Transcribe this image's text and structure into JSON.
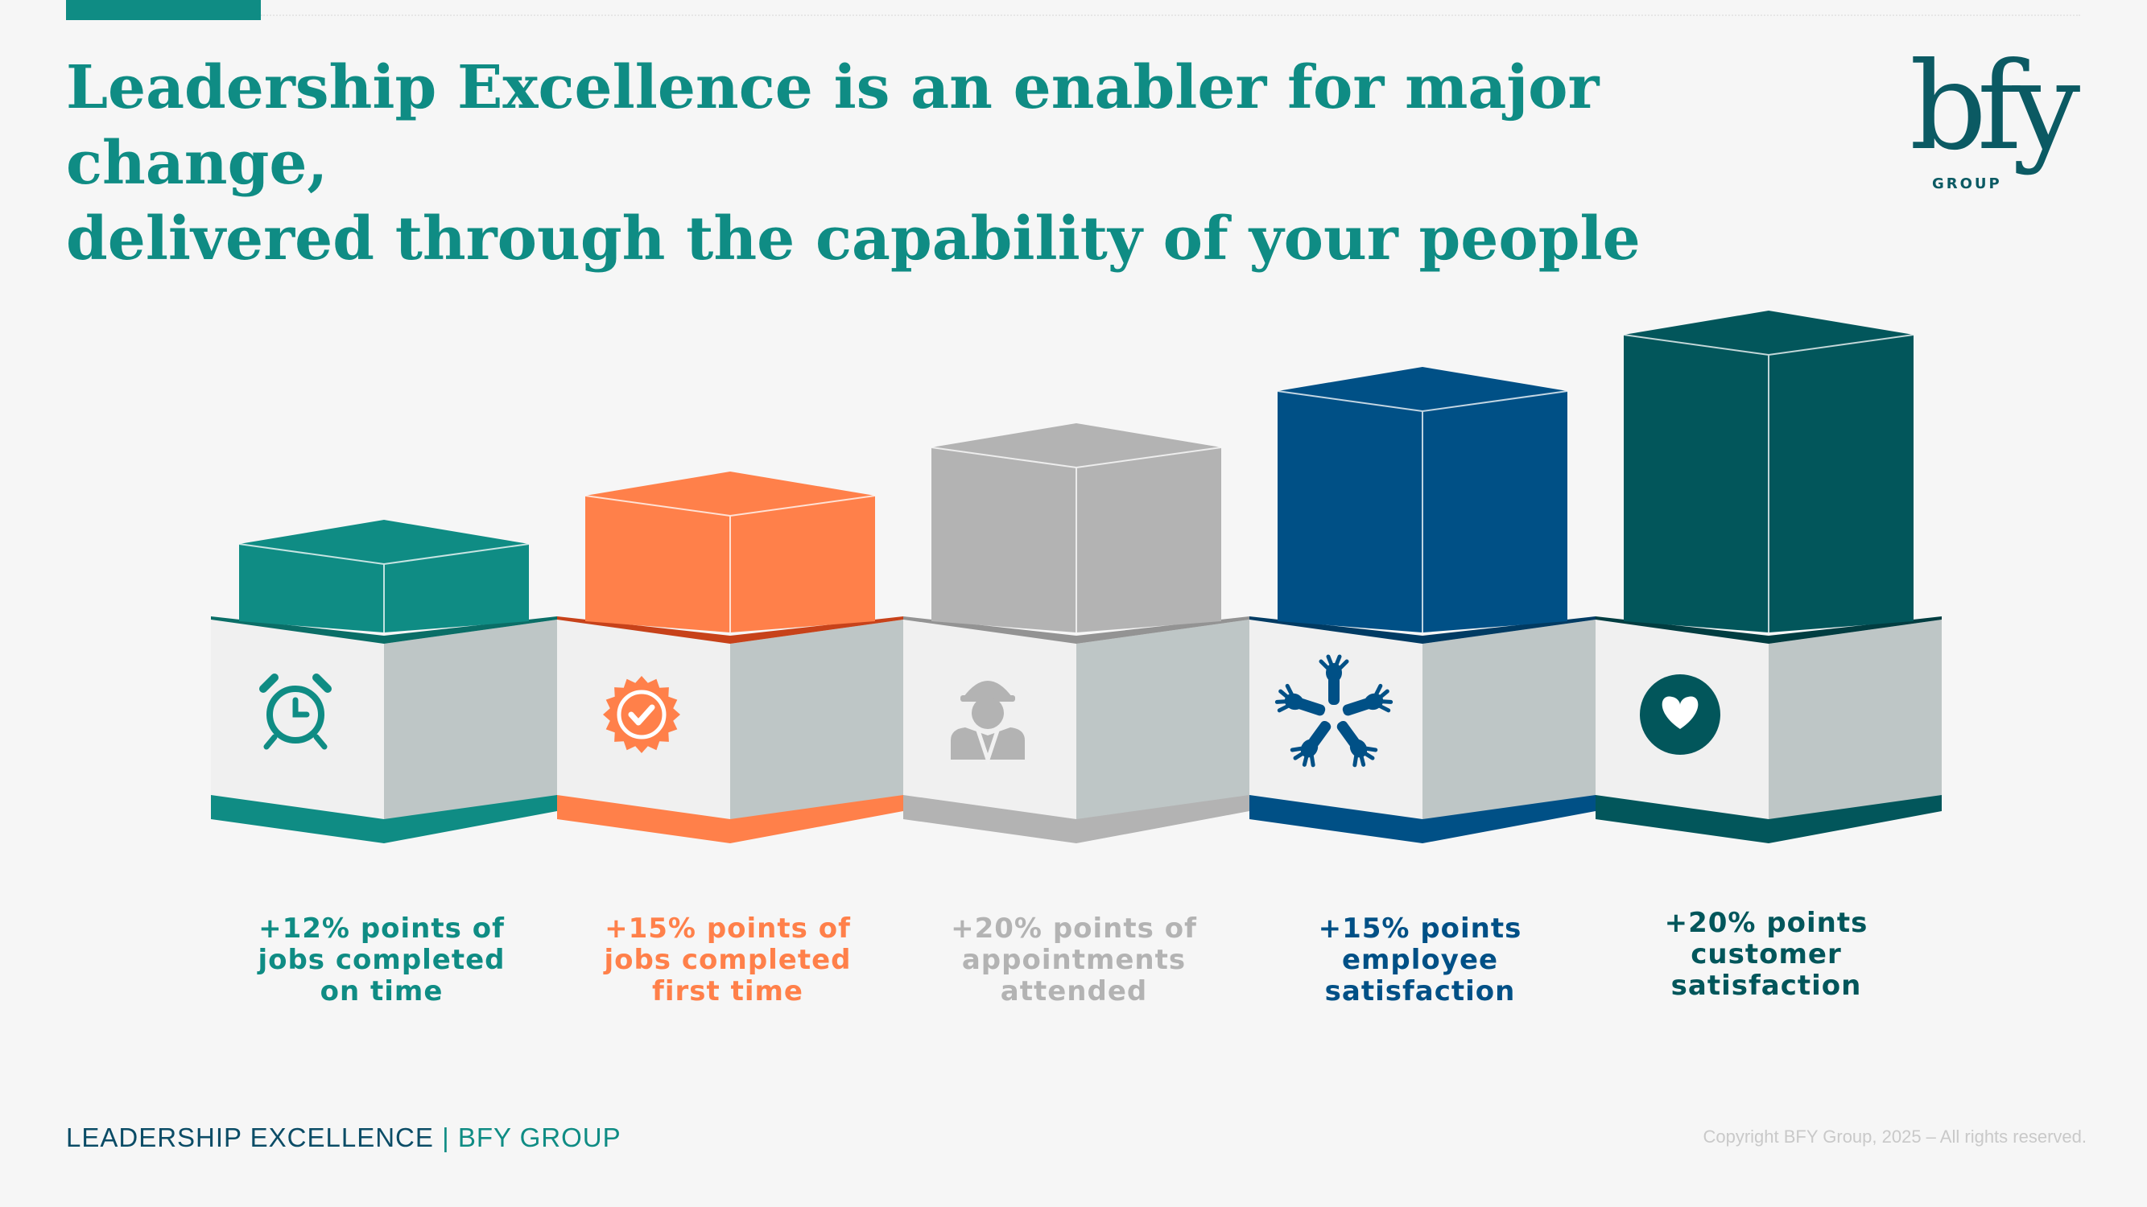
{
  "slide": {
    "title_lines": [
      "Leadership Excellence is an enabler for major change,",
      "delivered through the capability of your people"
    ]
  },
  "logo": {
    "mark": "bfy",
    "sub": "GROUP"
  },
  "blocks": [
    {
      "icon": "alarm-clock-icon",
      "color": "#0f8c84",
      "dark": "#0a6e67",
      "level": 1,
      "label_lines": [
        "+12% points of",
        "jobs completed",
        "on time"
      ]
    },
    {
      "icon": "check-badge-icon",
      "color": "#ff804a",
      "dark": "#c7421a",
      "level": 2,
      "label_lines": [
        "+15% points of",
        "jobs completed",
        "first time"
      ]
    },
    {
      "icon": "worker-icon",
      "color": "#b3b3b3",
      "dark": "#939393",
      "level": 3,
      "label_lines": [
        "+20% points of",
        "appointments",
        "attended"
      ]
    },
    {
      "icon": "hands-teamwork-icon",
      "color": "#005086",
      "dark": "#003b63",
      "level": 4,
      "label_lines": [
        "+15% points",
        "employee",
        "satisfaction"
      ]
    },
    {
      "icon": "heart-circle-icon",
      "color": "#02565b",
      "dark": "#013d41",
      "level": 5,
      "label_lines": [
        "+20% points",
        "customer",
        "satisfaction"
      ]
    }
  ],
  "footer": {
    "left_main": "LEADERSHIP EXCELLENCE",
    "left_sep": "|",
    "left_brand": "BFY GROUP",
    "copyright": "Copyright BFY Group, 2025 – All rights reserved."
  }
}
